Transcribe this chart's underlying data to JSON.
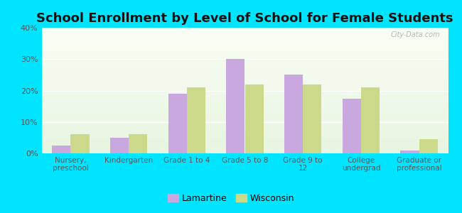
{
  "title": "School Enrollment by Level of School for Female Students",
  "categories": [
    "Nursery,\npreschool",
    "Kindergarten",
    "Grade 1 to 4",
    "Grade 5 to 8",
    "Grade 9 to\n12",
    "College\nundergrad",
    "Graduate or\nprofessional"
  ],
  "lamartine": [
    2.5,
    5.0,
    19.0,
    30.0,
    25.0,
    17.5,
    1.0
  ],
  "wisconsin": [
    6.0,
    6.0,
    21.0,
    22.0,
    22.0,
    21.0,
    4.5
  ],
  "lamartine_color": "#c9a8e0",
  "wisconsin_color": "#cdd98a",
  "background_outer": "#00e5ff",
  "ylim": [
    0,
    40
  ],
  "yticks": [
    0,
    10,
    20,
    30,
    40
  ],
  "bar_width": 0.32,
  "title_fontsize": 13,
  "legend_labels": [
    "Lamartine",
    "Wisconsin"
  ],
  "watermark": "City-Data.com"
}
